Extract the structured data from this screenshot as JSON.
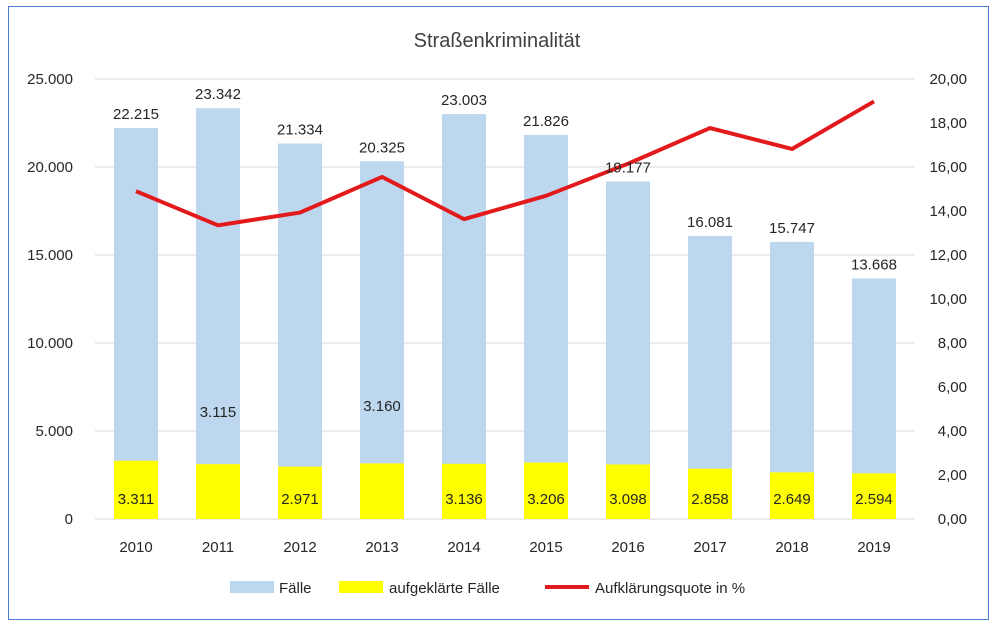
{
  "chart_data": {
    "type": "bar",
    "title": "Straßenkriminalität",
    "categories": [
      "2010",
      "2011",
      "2012",
      "2013",
      "2014",
      "2015",
      "2016",
      "2017",
      "2018",
      "2019"
    ],
    "series": [
      {
        "name": "Fälle",
        "type": "bar",
        "axis": "left",
        "color": "#bdd7ee",
        "values": [
          22215,
          23342,
          21334,
          20325,
          23003,
          21826,
          19177,
          16081,
          15747,
          13668
        ],
        "labels": [
          "22.215",
          "23.342",
          "21.334",
          "20.325",
          "23.003",
          "21.826",
          "19.177",
          "16.081",
          "15.747",
          "13.668"
        ]
      },
      {
        "name": "aufgeklärte Fälle",
        "type": "bar",
        "axis": "left",
        "color": "#ffff00",
        "values": [
          3311,
          3115,
          2971,
          3160,
          3136,
          3206,
          3098,
          2858,
          2649,
          2594
        ],
        "labels": [
          "3.311",
          "3.115",
          "2.971",
          "3.160",
          "3.136",
          "3.206",
          "3.098",
          "2.858",
          "2.649",
          "2.594"
        ]
      },
      {
        "name": "Aufklärungsquote in %",
        "type": "line",
        "axis": "right",
        "color": "#e31a1c",
        "values": [
          14.9,
          13.35,
          13.93,
          15.55,
          13.63,
          14.69,
          16.15,
          17.77,
          16.82,
          18.98
        ]
      }
    ],
    "ylim_left": [
      0,
      25000
    ],
    "ylim_right": [
      0,
      20
    ],
    "yticks_left": [
      "0",
      "5.000",
      "10.000",
      "15.000",
      "20.000",
      "25.000"
    ],
    "yticks_right": [
      "0,00",
      "2,00",
      "4,00",
      "6,00",
      "8,00",
      "10,00",
      "12,00",
      "14,00",
      "16,00",
      "18,00",
      "20,00"
    ],
    "grid": true,
    "legend": "bottom"
  }
}
